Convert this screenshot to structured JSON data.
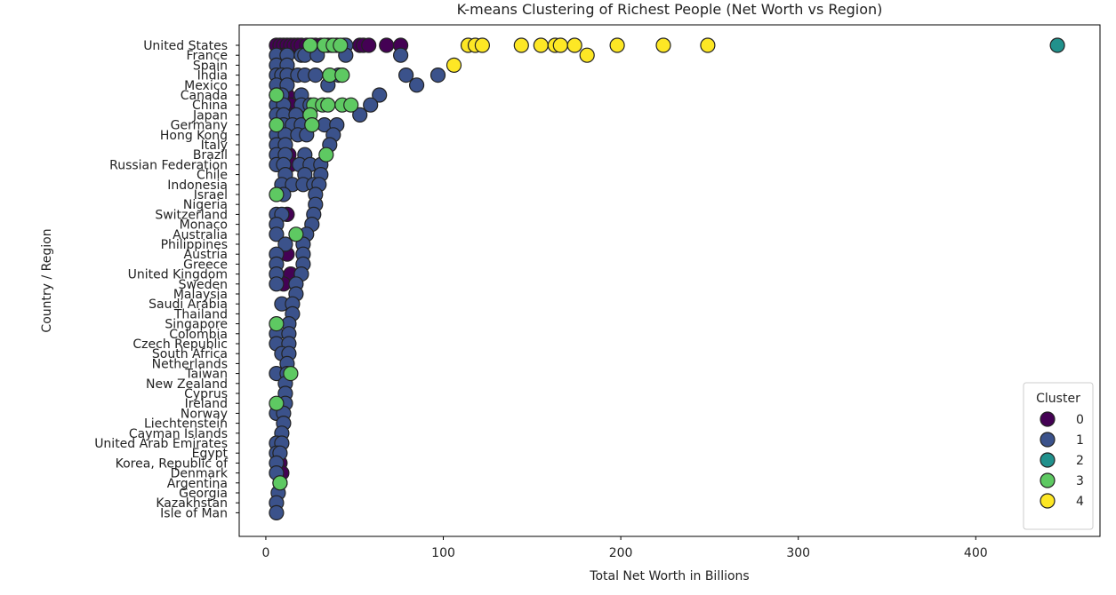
{
  "chart_data": {
    "type": "scatter",
    "title": "K-means Clustering of Richest People (Net Worth vs Region)",
    "xlabel": "Total Net Worth in Billions",
    "ylabel": "Country / Region",
    "xlim": [
      -15,
      470
    ],
    "xticks": [
      0,
      100,
      200,
      300,
      400
    ],
    "grid": false,
    "legend": {
      "title": "Cluster",
      "placement": "bottom-right"
    },
    "categories": [
      "United States",
      "France",
      "Spain",
      "India",
      "Mexico",
      "Canada",
      "China",
      "Japan",
      "Germany",
      "Hong Kong",
      "Italy",
      "Brazil",
      "Russian Federation",
      "Chile",
      "Indonesia",
      "Israel",
      "Nigeria",
      "Switzerland",
      "Monaco",
      "Australia",
      "Philippines",
      "Austria",
      "Greece",
      "United Kingdom",
      "Sweden",
      "Malaysia",
      "Saudi Arabia",
      "Thailand",
      "Singapore",
      "Colombia",
      "Czech Republic",
      "South Africa",
      "Netherlands",
      "Taiwan",
      "New Zealand",
      "Cyprus",
      "Ireland",
      "Norway",
      "Liechtenstein",
      "Cayman Islands",
      "United Arab Emirates",
      "Egypt",
      "Korea, Republic of",
      "Denmark",
      "Argentina",
      "Georgia",
      "Kazakhstan",
      "Isle of Man"
    ],
    "series": [
      {
        "name": "0",
        "color": "#440154",
        "points": [
          [
            "United States",
            6
          ],
          [
            "United States",
            8
          ],
          [
            "United States",
            10
          ],
          [
            "United States",
            12
          ],
          [
            "United States",
            14
          ],
          [
            "United States",
            16
          ],
          [
            "United States",
            18
          ],
          [
            "United States",
            20
          ],
          [
            "United States",
            23
          ],
          [
            "United States",
            26
          ],
          [
            "United States",
            28
          ],
          [
            "United States",
            31
          ],
          [
            "United States",
            35
          ],
          [
            "United States",
            40
          ],
          [
            "United States",
            44
          ],
          [
            "United States",
            53
          ],
          [
            "United States",
            55
          ],
          [
            "United States",
            58
          ],
          [
            "United States",
            68
          ],
          [
            "United States",
            76
          ],
          [
            "France",
            10
          ],
          [
            "Spain",
            12
          ],
          [
            "India",
            11
          ],
          [
            "Mexico",
            9
          ],
          [
            "Canada",
            12
          ],
          [
            "China",
            12
          ],
          [
            "China",
            14
          ],
          [
            "Japan",
            13
          ],
          [
            "Germany",
            14
          ],
          [
            "Hong Kong",
            11
          ],
          [
            "Brazil",
            13
          ],
          [
            "Russian Federation",
            14
          ],
          [
            "Indonesia",
            13
          ],
          [
            "Switzerland",
            12
          ],
          [
            "Austria",
            12
          ],
          [
            "United Kingdom",
            14
          ],
          [
            "Sweden",
            10
          ],
          [
            "Korea, Republic of",
            8
          ],
          [
            "Denmark",
            9
          ]
        ]
      },
      {
        "name": "1",
        "color": "#3b528b",
        "points": [
          [
            "United States",
            37
          ],
          [
            "United States",
            45
          ],
          [
            "France",
            6
          ],
          [
            "France",
            12
          ],
          [
            "France",
            20
          ],
          [
            "France",
            22
          ],
          [
            "France",
            29
          ],
          [
            "France",
            45
          ],
          [
            "France",
            76
          ],
          [
            "Spain",
            6
          ],
          [
            "Spain",
            12
          ],
          [
            "India",
            6
          ],
          [
            "India",
            9
          ],
          [
            "India",
            12
          ],
          [
            "India",
            18
          ],
          [
            "India",
            22
          ],
          [
            "India",
            28
          ],
          [
            "India",
            41
          ],
          [
            "India",
            79
          ],
          [
            "India",
            97
          ],
          [
            "Mexico",
            6
          ],
          [
            "Mexico",
            12
          ],
          [
            "Mexico",
            35
          ],
          [
            "Mexico",
            85
          ],
          [
            "Canada",
            6
          ],
          [
            "Canada",
            9
          ],
          [
            "Canada",
            20
          ],
          [
            "Canada",
            64
          ],
          [
            "China",
            6
          ],
          [
            "China",
            10
          ],
          [
            "China",
            20
          ],
          [
            "China",
            25
          ],
          [
            "China",
            59
          ],
          [
            "Japan",
            6
          ],
          [
            "Japan",
            10
          ],
          [
            "Japan",
            17
          ],
          [
            "Japan",
            53
          ],
          [
            "Germany",
            10
          ],
          [
            "Germany",
            15
          ],
          [
            "Germany",
            20
          ],
          [
            "Germany",
            26
          ],
          [
            "Germany",
            33
          ],
          [
            "Germany",
            40
          ],
          [
            "Hong Kong",
            6
          ],
          [
            "Hong Kong",
            11
          ],
          [
            "Hong Kong",
            18
          ],
          [
            "Hong Kong",
            23
          ],
          [
            "Hong Kong",
            38
          ],
          [
            "Italy",
            6
          ],
          [
            "Italy",
            11
          ],
          [
            "Italy",
            36
          ],
          [
            "Brazil",
            6
          ],
          [
            "Brazil",
            11
          ],
          [
            "Brazil",
            22
          ],
          [
            "Russian Federation",
            6
          ],
          [
            "Russian Federation",
            10
          ],
          [
            "Russian Federation",
            19
          ],
          [
            "Russian Federation",
            25
          ],
          [
            "Russian Federation",
            31
          ],
          [
            "Chile",
            11
          ],
          [
            "Chile",
            22
          ],
          [
            "Chile",
            31
          ],
          [
            "Indonesia",
            9
          ],
          [
            "Indonesia",
            15
          ],
          [
            "Indonesia",
            21
          ],
          [
            "Indonesia",
            27
          ],
          [
            "Indonesia",
            30
          ],
          [
            "Israel",
            10
          ],
          [
            "Israel",
            28
          ],
          [
            "Nigeria",
            28
          ],
          [
            "Switzerland",
            6
          ],
          [
            "Switzerland",
            9
          ],
          [
            "Switzerland",
            27
          ],
          [
            "Monaco",
            6
          ],
          [
            "Monaco",
            26
          ],
          [
            "Australia",
            6
          ],
          [
            "Australia",
            23
          ],
          [
            "Philippines",
            11
          ],
          [
            "Philippines",
            21
          ],
          [
            "Austria",
            6
          ],
          [
            "Austria",
            21
          ],
          [
            "Greece",
            6
          ],
          [
            "Greece",
            21
          ],
          [
            "United Kingdom",
            6
          ],
          [
            "United Kingdom",
            20
          ],
          [
            "Sweden",
            6
          ],
          [
            "Sweden",
            17
          ],
          [
            "Malaysia",
            17
          ],
          [
            "Saudi Arabia",
            9
          ],
          [
            "Saudi Arabia",
            15
          ],
          [
            "Thailand",
            15
          ],
          [
            "Singapore",
            13
          ],
          [
            "Colombia",
            6
          ],
          [
            "Colombia",
            13
          ],
          [
            "Czech Republic",
            6
          ],
          [
            "Czech Republic",
            13
          ],
          [
            "South Africa",
            9
          ],
          [
            "South Africa",
            13
          ],
          [
            "Netherlands",
            12
          ],
          [
            "Taiwan",
            6
          ],
          [
            "Taiwan",
            12
          ],
          [
            "New Zealand",
            11
          ],
          [
            "Cyprus",
            11
          ],
          [
            "Ireland",
            11
          ],
          [
            "Norway",
            6
          ],
          [
            "Norway",
            10
          ],
          [
            "Liechtenstein",
            10
          ],
          [
            "Cayman Islands",
            9
          ],
          [
            "United Arab Emirates",
            6
          ],
          [
            "United Arab Emirates",
            9
          ],
          [
            "Egypt",
            6
          ],
          [
            "Egypt",
            8
          ],
          [
            "Korea, Republic of",
            6
          ],
          [
            "Denmark",
            6
          ],
          [
            "Argentina",
            8
          ],
          [
            "Georgia",
            7
          ],
          [
            "Kazakhstan",
            6
          ],
          [
            "Isle of Man",
            6
          ]
        ]
      },
      {
        "name": "2",
        "color": "#21918c",
        "points": [
          [
            "United States",
            446
          ]
        ]
      },
      {
        "name": "3",
        "color": "#5ec962",
        "points": [
          [
            "United States",
            25
          ],
          [
            "United States",
            33
          ],
          [
            "United States",
            38
          ],
          [
            "United States",
            42
          ],
          [
            "India",
            36
          ],
          [
            "India",
            43
          ],
          [
            "Canada",
            6
          ],
          [
            "China",
            27
          ],
          [
            "China",
            32
          ],
          [
            "China",
            35
          ],
          [
            "China",
            43
          ],
          [
            "China",
            48
          ],
          [
            "Japan",
            25
          ],
          [
            "Germany",
            6
          ],
          [
            "Germany",
            26
          ],
          [
            "Brazil",
            34
          ],
          [
            "Israel",
            6
          ],
          [
            "Australia",
            17
          ],
          [
            "Singapore",
            6
          ],
          [
            "Taiwan",
            14
          ],
          [
            "Ireland",
            6
          ],
          [
            "Argentina",
            8
          ]
        ]
      },
      {
        "name": "4",
        "color": "#fde725",
        "points": [
          [
            "United States",
            114
          ],
          [
            "United States",
            118
          ],
          [
            "United States",
            122
          ],
          [
            "United States",
            144
          ],
          [
            "United States",
            155
          ],
          [
            "United States",
            163
          ],
          [
            "United States",
            166
          ],
          [
            "United States",
            174
          ],
          [
            "United States",
            198
          ],
          [
            "United States",
            224
          ],
          [
            "United States",
            249
          ],
          [
            "Spain",
            106
          ],
          [
            "France",
            181
          ]
        ]
      }
    ]
  }
}
